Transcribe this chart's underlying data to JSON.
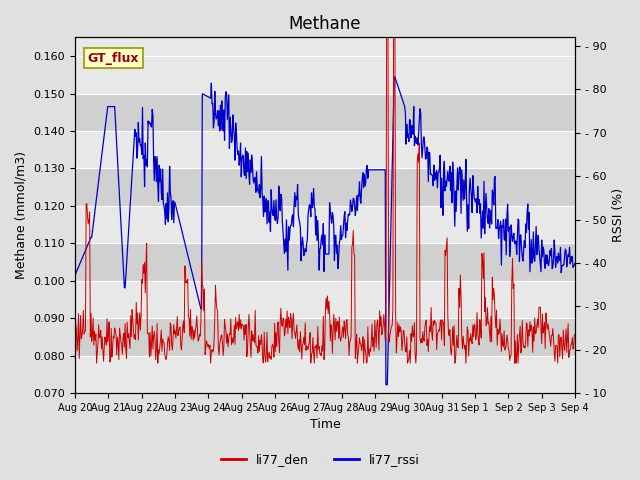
{
  "title": "Methane",
  "ylabel_left": "Methane (mmol/m3)",
  "ylabel_right": "RSSI (%)",
  "xlabel": "Time",
  "ylim_left": [
    0.07,
    0.165
  ],
  "ylim_right": [
    10,
    92
  ],
  "yticks_left": [
    0.07,
    0.08,
    0.09,
    0.1,
    0.11,
    0.12,
    0.13,
    0.14,
    0.15,
    0.16
  ],
  "yticks_right": [
    10,
    20,
    30,
    40,
    50,
    60,
    70,
    80,
    90
  ],
  "xtick_labels": [
    "Aug 20",
    "Aug 21",
    "Aug 22",
    "Aug 23",
    "Aug 24",
    "Aug 25",
    "Aug 26",
    "Aug 27",
    "Aug 28",
    "Aug 29",
    "Aug 30",
    "Aug 31",
    "Sep 1",
    "Sep 2",
    "Sep 3",
    "Sep 4"
  ],
  "color_red": "#cc0000",
  "color_blue": "#0000cc",
  "legend_label_red": "li77_den",
  "legend_label_blue": "li77_rssi",
  "watermark_text": "GT_flux",
  "fig_bg": "#e0e0e0",
  "plot_bg_light": "#e8e8e8",
  "plot_bg_dark": "#d0d0d0",
  "grid_color": "#ffffff",
  "title_fontsize": 12,
  "axis_fontsize": 9,
  "tick_fontsize": 8,
  "legend_fontsize": 9
}
